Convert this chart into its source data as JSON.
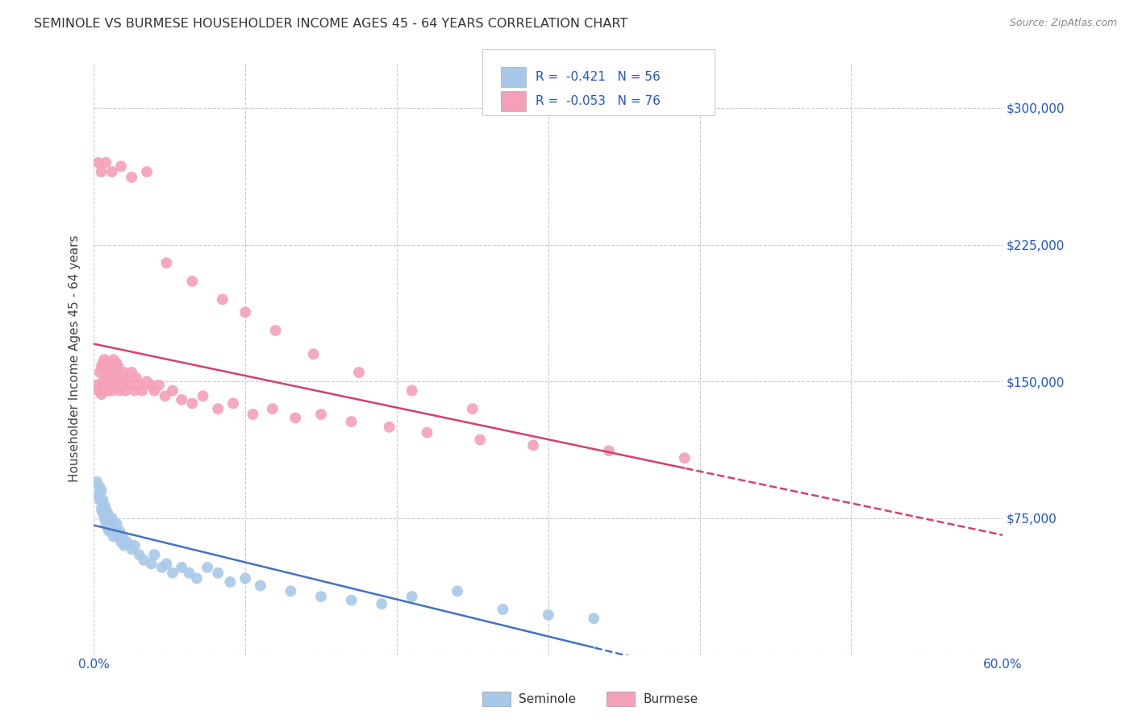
{
  "title": "SEMINOLE VS BURMESE HOUSEHOLDER INCOME AGES 45 - 64 YEARS CORRELATION CHART",
  "source": "Source: ZipAtlas.com",
  "ylabel": "Householder Income Ages 45 - 64 years",
  "xlim": [
    0.0,
    0.6
  ],
  "ylim": [
    0,
    325000
  ],
  "xticks": [
    0.0,
    0.1,
    0.2,
    0.3,
    0.4,
    0.5,
    0.6
  ],
  "xticklabels": [
    "0.0%",
    "",
    "",
    "",
    "",
    "",
    "60.0%"
  ],
  "yticks": [
    0,
    75000,
    150000,
    225000,
    300000
  ],
  "yticklabels": [
    "",
    "$75,000",
    "$150,000",
    "$225,000",
    "$300,000"
  ],
  "seminole_R": "-0.421",
  "seminole_N": "56",
  "burmese_R": "-0.053",
  "burmese_N": "76",
  "seminole_color": "#a8c8e8",
  "burmese_color": "#f4a0b8",
  "seminole_line_color": "#4472c4",
  "burmese_line_color": "#d44070",
  "legend_text_color": "#2255cc",
  "title_color": "#333333",
  "tick_color": "#2255cc",
  "grid_color": "#cccccc",
  "seminole_x": [
    0.002,
    0.003,
    0.004,
    0.004,
    0.005,
    0.005,
    0.006,
    0.006,
    0.007,
    0.007,
    0.008,
    0.008,
    0.009,
    0.009,
    0.01,
    0.01,
    0.011,
    0.011,
    0.012,
    0.012,
    0.013,
    0.014,
    0.015,
    0.015,
    0.016,
    0.017,
    0.018,
    0.019,
    0.02,
    0.022,
    0.025,
    0.027,
    0.03,
    0.033,
    0.038,
    0.04,
    0.045,
    0.048,
    0.052,
    0.058,
    0.063,
    0.068,
    0.075,
    0.082,
    0.09,
    0.1,
    0.11,
    0.13,
    0.15,
    0.17,
    0.19,
    0.21,
    0.24,
    0.27,
    0.3,
    0.33
  ],
  "seminole_y": [
    95000,
    88000,
    85000,
    92000,
    80000,
    90000,
    78000,
    85000,
    75000,
    82000,
    72000,
    80000,
    70000,
    78000,
    68000,
    75000,
    72000,
    70000,
    68000,
    75000,
    65000,
    70000,
    68000,
    72000,
    65000,
    68000,
    62000,
    65000,
    60000,
    62000,
    58000,
    60000,
    55000,
    52000,
    50000,
    55000,
    48000,
    50000,
    45000,
    48000,
    45000,
    42000,
    48000,
    45000,
    40000,
    42000,
    38000,
    35000,
    32000,
    30000,
    28000,
    32000,
    35000,
    25000,
    22000,
    20000
  ],
  "burmese_x": [
    0.002,
    0.003,
    0.004,
    0.005,
    0.005,
    0.006,
    0.006,
    0.007,
    0.007,
    0.008,
    0.008,
    0.009,
    0.009,
    0.01,
    0.01,
    0.011,
    0.011,
    0.012,
    0.012,
    0.013,
    0.013,
    0.014,
    0.015,
    0.015,
    0.016,
    0.016,
    0.017,
    0.018,
    0.019,
    0.02,
    0.021,
    0.022,
    0.024,
    0.025,
    0.027,
    0.028,
    0.03,
    0.032,
    0.035,
    0.038,
    0.04,
    0.043,
    0.047,
    0.052,
    0.058,
    0.065,
    0.072,
    0.082,
    0.092,
    0.105,
    0.118,
    0.133,
    0.15,
    0.17,
    0.195,
    0.22,
    0.255,
    0.29,
    0.34,
    0.39,
    0.003,
    0.005,
    0.008,
    0.012,
    0.018,
    0.025,
    0.035,
    0.048,
    0.065,
    0.085,
    0.1,
    0.12,
    0.145,
    0.175,
    0.21,
    0.25
  ],
  "burmese_y": [
    148000,
    145000,
    155000,
    143000,
    158000,
    150000,
    160000,
    148000,
    162000,
    145000,
    155000,
    150000,
    160000,
    145000,
    155000,
    148000,
    158000,
    145000,
    152000,
    148000,
    162000,
    155000,
    150000,
    160000,
    148000,
    158000,
    145000,
    152000,
    148000,
    155000,
    145000,
    150000,
    148000,
    155000,
    145000,
    152000,
    148000,
    145000,
    150000,
    148000,
    145000,
    148000,
    142000,
    145000,
    140000,
    138000,
    142000,
    135000,
    138000,
    132000,
    135000,
    130000,
    132000,
    128000,
    125000,
    122000,
    118000,
    115000,
    112000,
    108000,
    270000,
    265000,
    270000,
    265000,
    268000,
    262000,
    265000,
    215000,
    205000,
    195000,
    188000,
    178000,
    165000,
    155000,
    145000,
    135000
  ]
}
